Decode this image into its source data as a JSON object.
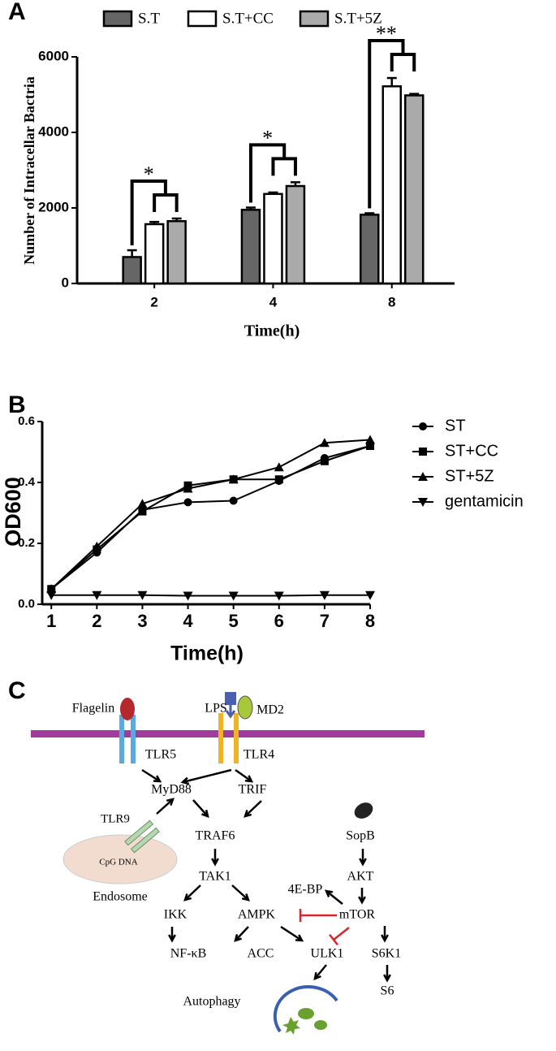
{
  "chart_data": [
    {
      "type": "bar",
      "panel": "A",
      "x_label": "Time(h)",
      "y_label": "Number of Intracellar Bactria",
      "categories": [
        "2",
        "4",
        "8"
      ],
      "series": [
        {
          "name": "S.T",
          "color": "#666666",
          "values": [
            700,
            1950,
            1820
          ],
          "errors": [
            180,
            60,
            40
          ]
        },
        {
          "name": "S.T+CC",
          "color": "#ffffff",
          "values": [
            1570,
            2370,
            5220
          ],
          "errors": [
            60,
            40,
            220
          ]
        },
        {
          "name": "S.T+5Z",
          "color": "#aaaaaa",
          "values": [
            1650,
            2580,
            4980
          ],
          "errors": [
            70,
            100,
            40
          ]
        }
      ],
      "annotations": [
        "*",
        "*",
        "**"
      ],
      "ylim": [
        0,
        6000
      ],
      "yticks": [
        0,
        2000,
        4000,
        6000
      ]
    },
    {
      "type": "line",
      "panel": "B",
      "x_label": "Time(h)",
      "y_label": "OD600",
      "x": [
        1,
        2,
        3,
        4,
        5,
        6,
        7,
        8
      ],
      "series": [
        {
          "name": "ST",
          "color": "#000000",
          "marker": "circle",
          "values": [
            0.05,
            0.17,
            0.31,
            0.335,
            0.34,
            0.405,
            0.48,
            0.52
          ]
        },
        {
          "name": "ST+CC",
          "color": "#000000",
          "marker": "square",
          "values": [
            0.05,
            0.18,
            0.305,
            0.39,
            0.41,
            0.41,
            0.47,
            0.52
          ]
        },
        {
          "name": "ST+5Z",
          "color": "#000000",
          "marker": "triangle",
          "values": [
            0.05,
            0.19,
            0.33,
            0.38,
            0.41,
            0.45,
            0.53,
            0.54
          ]
        },
        {
          "name": "gentamicin",
          "color": "#000000",
          "marker": "triangle-down",
          "values": [
            0.03,
            0.03,
            0.03,
            0.028,
            0.028,
            0.028,
            0.03,
            0.03
          ]
        }
      ],
      "xlim": [
        0.8,
        8
      ],
      "xticks": [
        1,
        2,
        3,
        4,
        5,
        6,
        7,
        8
      ],
      "ylim": [
        0,
        0.6
      ],
      "yticks": [
        {
          "value": 0,
          "label": "0.0"
        },
        0.2,
        0.4,
        0.6
      ],
      "legend": "right"
    }
  ],
  "diagram": {
    "panel": "C",
    "labels": [
      "Flagelin",
      "LPS",
      "MD2",
      "TLR5",
      "TLR4",
      "MyD88",
      "TRIF",
      "TLR9",
      "TRAF6",
      "CpG DNA",
      "Endosome",
      "SopB",
      "TAK1",
      "4E-BP",
      "AKT",
      "IKK",
      "AMPK",
      "mTOR",
      "NF-κB",
      "ACC",
      "ULK1",
      "S6K1",
      "S6",
      "Autophagy"
    ]
  }
}
